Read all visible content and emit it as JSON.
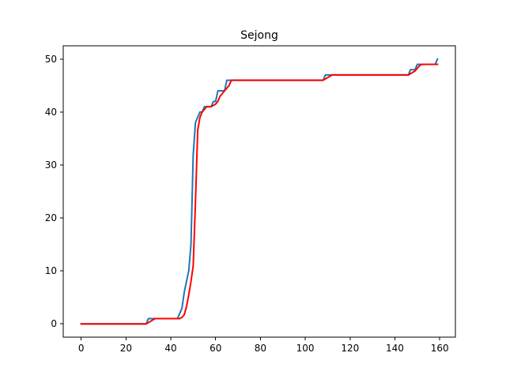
{
  "chart_data": {
    "type": "line",
    "title": "Sejong",
    "xlabel": "",
    "ylabel": "",
    "xlim": [
      -8,
      167
    ],
    "ylim": [
      -2.5,
      52.5
    ],
    "xticks": [
      0,
      20,
      40,
      60,
      80,
      100,
      120,
      140,
      160
    ],
    "yticks": [
      0,
      10,
      20,
      30,
      40,
      50
    ],
    "grid": false,
    "legend": "none",
    "series": [
      {
        "color": "#1f77b4",
        "x": [
          0,
          29,
          30,
          32,
          33,
          43,
          44,
          45,
          46,
          48,
          49,
          50,
          51,
          52,
          53,
          54,
          55,
          56,
          57,
          58,
          59,
          60,
          61,
          62,
          63,
          64,
          65,
          66,
          67,
          68,
          69,
          108,
          109,
          111,
          112,
          146,
          147,
          149,
          150,
          152,
          153,
          158,
          159
        ],
        "y": [
          0,
          0,
          1,
          1,
          1,
          1,
          2,
          3,
          6,
          10,
          15,
          32,
          38,
          39,
          40,
          40,
          41,
          41,
          41,
          41,
          42,
          42,
          44,
          44,
          44,
          44,
          46,
          46,
          46,
          46,
          46,
          46,
          47,
          47,
          47,
          47,
          48,
          48,
          49,
          49,
          49,
          49,
          50
        ]
      },
      {
        "color": "#ff0000",
        "x": [
          0,
          29,
          30,
          31,
          32,
          33,
          34,
          44,
          45,
          46,
          47,
          48,
          49,
          50,
          51,
          52,
          53,
          54,
          55,
          56,
          57,
          58,
          59,
          60,
          61,
          62,
          63,
          64,
          65,
          66,
          67,
          68,
          69,
          108,
          109,
          110,
          111,
          112,
          146,
          147,
          148,
          149,
          150,
          151,
          152,
          153,
          158,
          159
        ],
        "y": [
          0,
          0,
          0.25,
          0.5,
          0.75,
          1,
          1,
          1,
          1.25,
          1.75,
          3.25,
          5.5,
          8,
          11,
          23,
          36.5,
          39,
          40,
          40.5,
          41,
          41,
          41,
          41.25,
          41.5,
          42,
          43,
          43.5,
          44,
          44.5,
          45,
          46,
          46,
          46,
          46,
          46.25,
          46.5,
          46.75,
          47,
          47,
          47.25,
          47.5,
          47.75,
          48.25,
          48.75,
          49,
          49,
          49,
          49
        ]
      }
    ]
  }
}
